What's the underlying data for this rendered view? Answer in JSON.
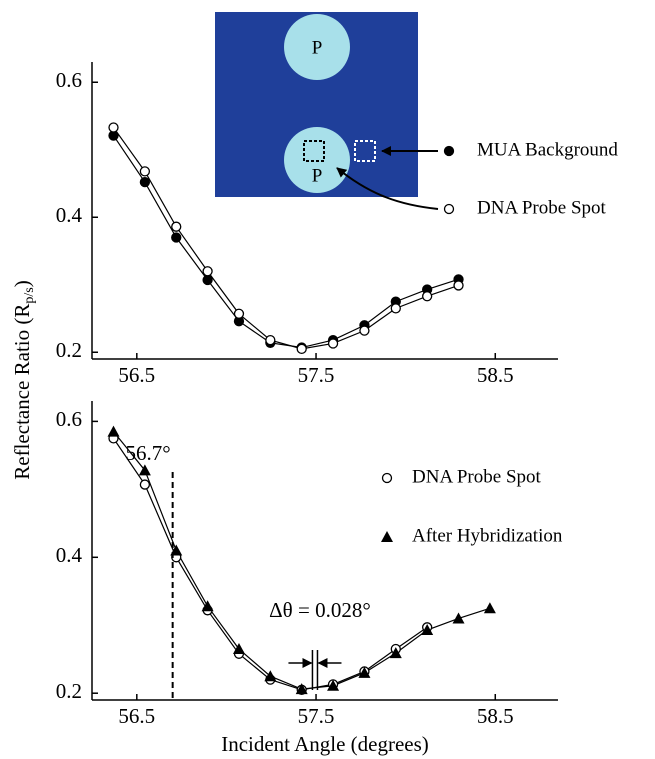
{
  "chart_data": [
    {
      "type": "line",
      "ylabel": [
        "Reflectance Ratio (R",
        "p/s",
        ")"
      ],
      "x": [
        56.37,
        56.545,
        56.72,
        56.895,
        57.07,
        57.245,
        57.42,
        57.595,
        57.77,
        57.945,
        58.12,
        58.295
      ],
      "series": [
        {
          "name": "MUA Background",
          "color": "#000000",
          "marker": "filled-circle",
          "values": [
            0.521,
            0.452,
            0.37,
            0.307,
            0.246,
            0.214,
            0.207,
            0.218,
            0.24,
            0.275,
            0.293,
            0.308
          ]
        },
        {
          "name": "DNA Probe Spot",
          "color": "#000000",
          "marker": "open-circle",
          "values": [
            0.533,
            0.468,
            0.386,
            0.32,
            0.257,
            0.218,
            0.205,
            0.213,
            0.232,
            0.265,
            0.283,
            0.299
          ]
        }
      ],
      "inset": {
        "labels": [
          "P",
          "P"
        ]
      },
      "xlim": [
        56.25,
        58.85
      ],
      "xticks": [
        56.5,
        57.5,
        58.5
      ],
      "ylim": [
        0.19,
        0.63
      ],
      "yticks": [
        0.2,
        0.4,
        0.6
      ]
    },
    {
      "type": "line",
      "xlabel": "Incident Angle (degrees)",
      "x": [
        56.37,
        56.545,
        56.72,
        56.895,
        57.07,
        57.245,
        57.42,
        57.595,
        57.77,
        57.945,
        58.12,
        58.295,
        58.47
      ],
      "series": [
        {
          "name": "DNA Probe Spot",
          "color": "#000000",
          "marker": "open-circle",
          "values": [
            0.575,
            0.507,
            0.4,
            0.322,
            0.258,
            0.22,
            0.205,
            0.213,
            0.232,
            0.265,
            0.297,
            null,
            null
          ]
        },
        {
          "name": "After Hybridization",
          "color": "#000000",
          "marker": "triangle",
          "values": [
            0.585,
            0.528,
            0.41,
            0.328,
            0.265,
            0.225,
            0.206,
            0.211,
            0.23,
            0.259,
            0.293,
            0.31,
            0.325
          ]
        }
      ],
      "annotations": [
        {
          "text": "56.7°",
          "x": [
            56.7
          ]
        },
        {
          "text": "Δθ = 0.028°",
          "x": [
            57.48,
            57.508
          ]
        }
      ],
      "xlim": [
        56.25,
        58.85
      ],
      "xticks": [
        56.5,
        57.5,
        58.5
      ],
      "ylim": [
        0.19,
        0.63
      ],
      "yticks": [
        0.2,
        0.4,
        0.6
      ]
    }
  ]
}
